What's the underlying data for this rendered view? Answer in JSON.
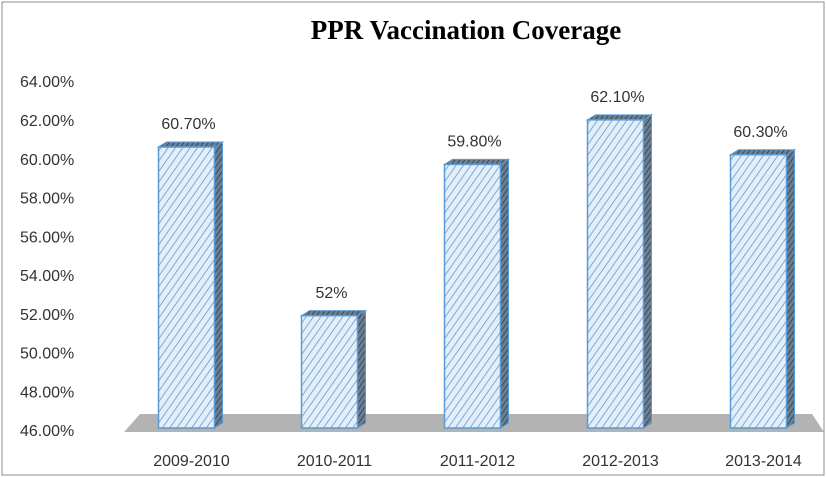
{
  "chart_data": {
    "type": "bar",
    "title": "PPR Vaccination Coverage",
    "categories": [
      "2009-2010",
      "2010-2011",
      "2011-2012",
      "2012-2013",
      "2013-2014"
    ],
    "values": [
      60.7,
      52,
      59.8,
      62.1,
      60.3
    ],
    "value_labels": [
      "60.70%",
      "52%",
      "59.80%",
      "62.10%",
      "60.30%"
    ],
    "color": "#5b9bd5",
    "ylim": [
      46,
      64
    ],
    "yticks": [
      {
        "value": 46,
        "label": "46.00%"
      },
      {
        "value": 48,
        "label": "48.00%"
      },
      {
        "value": 50,
        "label": "50.00%"
      },
      {
        "value": 52,
        "label": "52.00%"
      },
      {
        "value": 54,
        "label": "54.00%"
      },
      {
        "value": 56,
        "label": "56.00%"
      },
      {
        "value": 58,
        "label": "58.00%"
      },
      {
        "value": 60,
        "label": "60.00%"
      },
      {
        "value": 62,
        "label": "62.00%"
      },
      {
        "value": 64,
        "label": "64.00%"
      }
    ],
    "grid": false
  }
}
